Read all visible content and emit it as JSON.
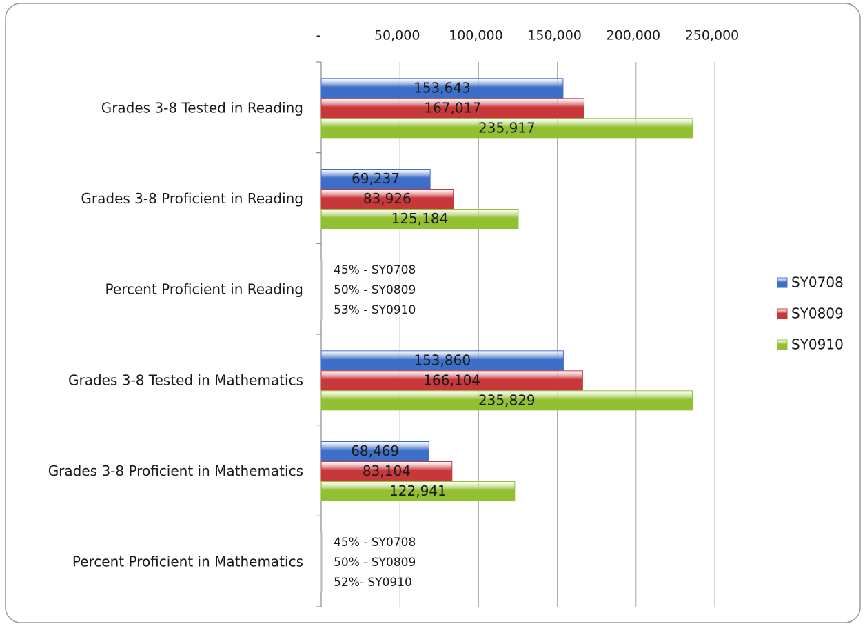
{
  "chart_data": {
    "type": "hbar",
    "categories": [
      "Grades 3-8 Tested in Reading",
      "Grades 3-8 Proficient in Reading",
      "Percent Proficient in Reading",
      "Grades 3-8 Tested in Mathematics",
      "Grades 3-8 Proficient in Mathematics",
      "Percent Proficient in Mathematics"
    ],
    "series": [
      {
        "name": "SY0708",
        "color": "#3d6fc8",
        "values": [
          153643,
          69237,
          45,
          153860,
          68469,
          45
        ],
        "value_labels": [
          "153,643",
          "69,237",
          "45% - SY0708",
          "153,860",
          "68,469",
          "45% - SY0708"
        ]
      },
      {
        "name": "SY0809",
        "color": "#c8383a",
        "values": [
          167017,
          83926,
          50,
          166104,
          83104,
          50
        ],
        "value_labels": [
          "167,017",
          "83,926",
          "50% - SY0809",
          "166,104",
          "83,104",
          "50% - SY0809"
        ]
      },
      {
        "name": "SY0910",
        "color": "#93c033",
        "values": [
          235917,
          125184,
          53,
          235829,
          122941,
          52
        ],
        "value_labels": [
          "235,917",
          "125,184",
          "53% - SY0910",
          "235,829",
          "122,941",
          "52%- SY0910"
        ]
      }
    ],
    "xlim": [
      0,
      250000
    ],
    "xticks": [
      {
        "value": 0,
        "label": "-"
      },
      {
        "value": 50000,
        "label": "50,000"
      },
      {
        "value": 100000,
        "label": "100,000"
      },
      {
        "value": 150000,
        "label": "150,000"
      },
      {
        "value": 200000,
        "label": "200,000"
      },
      {
        "value": 250000,
        "label": "250,000"
      }
    ],
    "grid": true,
    "legend": "right"
  }
}
